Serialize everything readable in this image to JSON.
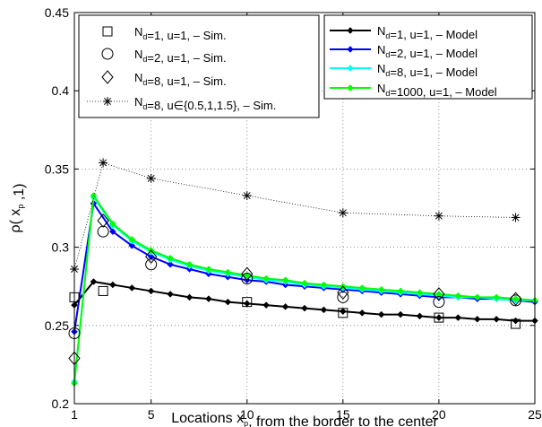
{
  "chart_data": {
    "type": "line",
    "xlabel": "Locations x_p, from the border to the center",
    "ylabel": "ρ( x_p ,1)",
    "xlim": [
      1,
      25
    ],
    "ylim": [
      0.2,
      0.45
    ],
    "xticks": [
      1,
      5,
      10,
      15,
      20,
      25
    ],
    "yticks": [
      0.2,
      0.25,
      0.3,
      0.35,
      0.4,
      0.45
    ],
    "xtick_labels": [
      "1",
      "5",
      "10",
      "15",
      "20",
      "25"
    ],
    "ytick_labels": [
      "0.2",
      "0.25",
      "0.3",
      "0.35",
      "0.4",
      "0.45"
    ],
    "grid": true,
    "sim_series": [
      {
        "name": "N_d=1, u=1, – Sim.",
        "marker": "square",
        "color": "#000000",
        "x": [
          1,
          2.5,
          10,
          15,
          20,
          24
        ],
        "y": [
          0.268,
          0.272,
          0.265,
          0.258,
          0.255,
          0.251
        ]
      },
      {
        "name": "N_d=2, u=1, – Sim.",
        "marker": "circle",
        "color": "#000000",
        "x": [
          1,
          2.5,
          5,
          10,
          15,
          20,
          24
        ],
        "y": [
          0.245,
          0.31,
          0.289,
          0.28,
          0.268,
          0.265,
          0.266
        ]
      },
      {
        "name": "N_d=8, u=1, – Sim.",
        "marker": "diamond",
        "color": "#000000",
        "x": [
          1,
          2.5,
          5,
          10,
          15,
          20,
          24
        ],
        "y": [
          0.229,
          0.317,
          0.294,
          0.283,
          0.271,
          0.27,
          0.267
        ]
      },
      {
        "name": "N_d=8, u∈{0.5,1,1.5}, – Sim.",
        "marker": "star",
        "color": "#000000",
        "line": "dotted",
        "x": [
          1,
          2.5,
          5,
          10,
          15,
          20,
          24
        ],
        "y": [
          0.286,
          0.354,
          0.344,
          0.333,
          0.322,
          0.32,
          0.319
        ]
      }
    ],
    "model_series": [
      {
        "name": "N_d=1, u=1, – Model",
        "color": "#000000",
        "x": [
          1,
          2,
          3,
          4,
          5,
          6,
          7,
          8,
          9,
          10,
          11,
          12,
          13,
          14,
          15,
          16,
          17,
          18,
          19,
          20,
          21,
          22,
          23,
          24,
          25
        ],
        "y": [
          0.263,
          0.278,
          0.276,
          0.274,
          0.272,
          0.27,
          0.268,
          0.267,
          0.265,
          0.264,
          0.263,
          0.262,
          0.261,
          0.26,
          0.259,
          0.258,
          0.257,
          0.257,
          0.256,
          0.255,
          0.255,
          0.254,
          0.254,
          0.253,
          0.253
        ]
      },
      {
        "name": "N_d=2, u=1, – Model",
        "color": "#0000ff",
        "x": [
          1,
          2,
          3,
          4,
          5,
          6,
          7,
          8,
          9,
          10,
          11,
          12,
          13,
          14,
          15,
          16,
          17,
          18,
          19,
          20,
          21,
          22,
          23,
          24,
          25
        ],
        "y": [
          0.246,
          0.328,
          0.31,
          0.301,
          0.294,
          0.289,
          0.286,
          0.283,
          0.281,
          0.279,
          0.278,
          0.276,
          0.275,
          0.274,
          0.273,
          0.272,
          0.271,
          0.27,
          0.269,
          0.268,
          0.268,
          0.267,
          0.267,
          0.266,
          0.265
        ]
      },
      {
        "name": "N_d=8, u=1, – Model",
        "color": "#00ffff",
        "x": [
          1,
          2,
          3,
          4,
          5,
          6,
          7,
          8,
          9,
          10,
          11,
          12,
          13,
          14,
          15,
          16,
          17,
          18,
          19,
          20,
          21,
          22,
          23,
          24,
          25
        ],
        "y": [
          0.214,
          0.332,
          0.314,
          0.304,
          0.297,
          0.292,
          0.288,
          0.285,
          0.283,
          0.281,
          0.279,
          0.278,
          0.276,
          0.275,
          0.274,
          0.273,
          0.272,
          0.271,
          0.27,
          0.269,
          0.268,
          0.268,
          0.267,
          0.266,
          0.266
        ]
      },
      {
        "name": "N_d=1000, u=1, – Model",
        "color": "#00ff00",
        "x": [
          1,
          2,
          3,
          4,
          5,
          6,
          7,
          8,
          9,
          10,
          11,
          12,
          13,
          14,
          15,
          16,
          17,
          18,
          19,
          20,
          21,
          22,
          23,
          24,
          25
        ],
        "y": [
          0.213,
          0.333,
          0.315,
          0.305,
          0.298,
          0.293,
          0.289,
          0.286,
          0.284,
          0.282,
          0.28,
          0.279,
          0.277,
          0.276,
          0.275,
          0.274,
          0.273,
          0.272,
          0.271,
          0.27,
          0.269,
          0.268,
          0.268,
          0.267,
          0.266
        ]
      }
    ],
    "legends": [
      {
        "position": "top-left",
        "entries": [
          "N_d=1, u=1, – Sim.",
          "N_d=2, u=1, – Sim.",
          "N_d=8, u=1, – Sim.",
          "N_d=8, u∈{0.5,1,1.5}, – Sim."
        ]
      },
      {
        "position": "top-right",
        "entries": [
          "N_d=1, u=1, – Model",
          "N_d=2, u=1, – Model",
          "N_d=8, u=1, – Model",
          "N_d=1000, u=1, – Model"
        ]
      }
    ]
  }
}
